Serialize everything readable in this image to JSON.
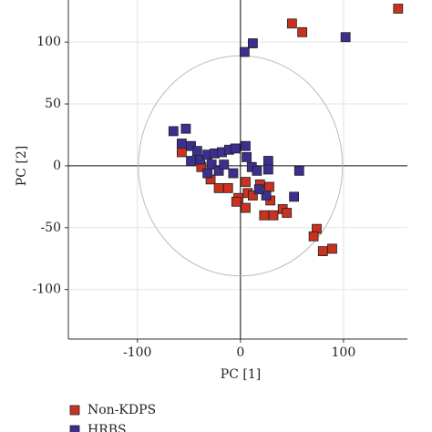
{
  "chart_data": {
    "type": "scatter",
    "xlabel": "PC [1]",
    "ylabel": "PC [2]",
    "xlim": [
      -167,
      162
    ],
    "ylim": [
      -140,
      134
    ],
    "xticks": [
      -100,
      0,
      100
    ],
    "yticks": [
      -100,
      -50,
      0,
      50,
      100
    ],
    "grid": true,
    "legend": "bottom-left",
    "ellipse": {
      "cx": 0,
      "cy": 0,
      "rx": 99,
      "ry": 89
    },
    "series": [
      {
        "name": "Non-KDPS",
        "color": "#c8321e",
        "x": [
          50,
          60,
          153,
          -57,
          -38,
          -29,
          -21,
          -2,
          -4,
          5,
          7,
          12,
          19,
          28,
          29,
          23,
          32,
          41,
          45,
          74,
          71,
          80,
          89,
          5,
          -12
        ],
        "values": [
          115,
          108,
          127,
          11,
          -1,
          -11,
          -18,
          -26,
          -29,
          -13,
          -22,
          -24,
          -15,
          -17,
          -28,
          -40,
          -40,
          -35,
          -38,
          -51,
          -57,
          -69,
          -67,
          -34,
          -18
        ]
      },
      {
        "name": "HRBS",
        "color": "#3b2f8f",
        "x": [
          12,
          4,
          102,
          -65,
          -53,
          -57,
          -48,
          -42,
          -39,
          -32,
          -25,
          -18,
          -11,
          -5,
          5,
          6,
          11,
          16,
          27,
          27,
          57,
          52,
          25,
          18,
          -28,
          -21,
          -16,
          -32,
          -48,
          -7
        ],
        "values": [
          99,
          92,
          104,
          28,
          30,
          18,
          16,
          12,
          5,
          9,
          10,
          11,
          13,
          14,
          16,
          7,
          -1,
          -4,
          4,
          -3,
          -4,
          -25,
          -24,
          -19,
          1,
          -4,
          1,
          -6,
          4,
          -6
        ]
      }
    ]
  }
}
